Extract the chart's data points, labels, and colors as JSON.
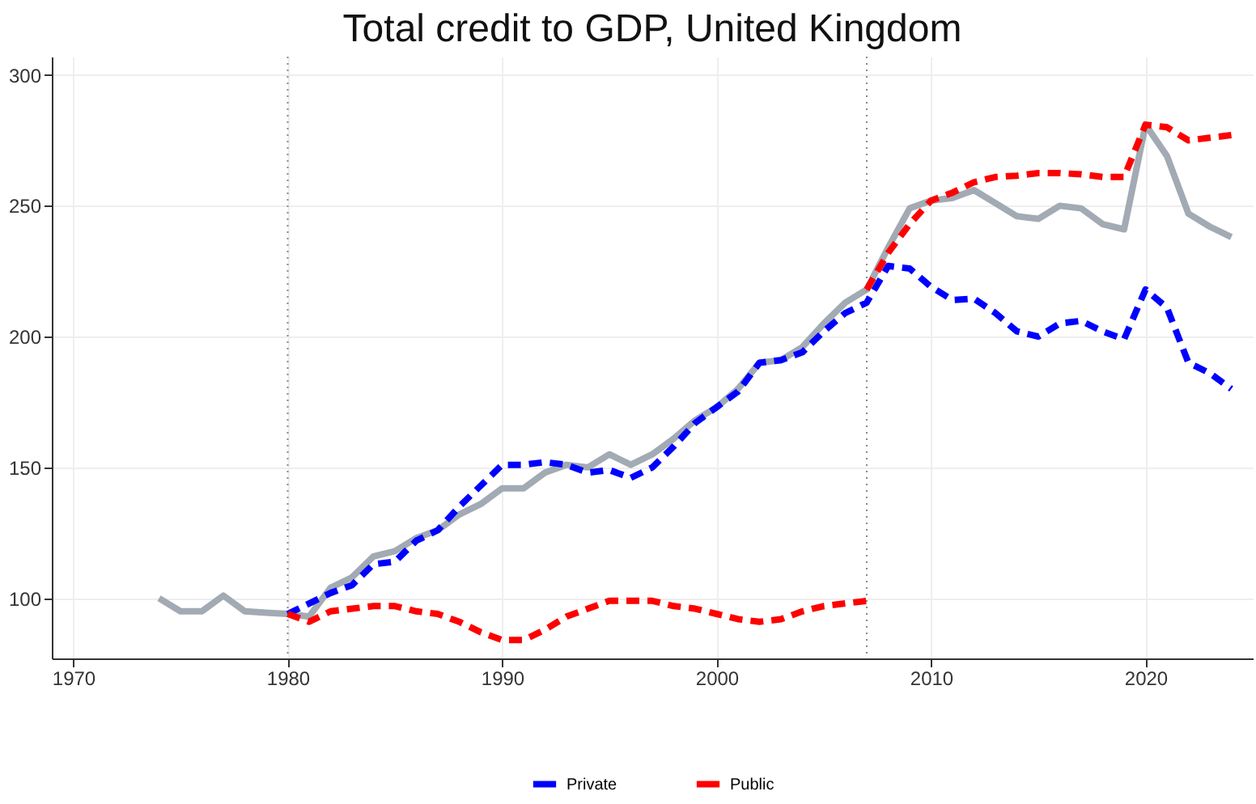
{
  "chart_data": {
    "type": "line",
    "title": "Total credit to GDP, United Kingdom",
    "xlim": [
      1969,
      2025
    ],
    "xticks": [
      1970,
      1980,
      1990,
      2000,
      2010,
      2020
    ],
    "ylim": [
      77,
      307
    ],
    "yticks": [
      100,
      150,
      200,
      250,
      300
    ],
    "grid": true,
    "legend": "bottom",
    "marker": "none",
    "ref_lines": [
      {
        "axis": "x",
        "value": 1980,
        "color": "#888888",
        "line_style": "dotted"
      },
      {
        "axis": "x",
        "value": 2007,
        "color": "#888888",
        "line_style": "dotted"
      }
    ],
    "series": [
      {
        "color": "#a2aab4",
        "line_style": "solid",
        "x": [
          1974,
          1975,
          1976,
          1977,
          1978,
          1979,
          1980,
          1981,
          1982,
          1983,
          1984,
          1985,
          1986,
          1987,
          1988,
          1989,
          1990,
          1991,
          1992,
          1993,
          1994,
          1995,
          1996,
          1997,
          1998,
          1999,
          2000,
          2001,
          2002,
          2003,
          2004,
          2005,
          2006,
          2007,
          2008,
          2009,
          2010,
          2011,
          2012,
          2013,
          2014,
          2015,
          2016,
          2017,
          2018,
          2019,
          2020,
          2021,
          2022,
          2023,
          2024
        ],
        "values": [
          100,
          95,
          95,
          101,
          95,
          94.5,
          94,
          93,
          104,
          108,
          116,
          118,
          123,
          126,
          132,
          136,
          142,
          142,
          148,
          151,
          150,
          155,
          151,
          155,
          161,
          168,
          173,
          180,
          190,
          191,
          196,
          205,
          213,
          218,
          234,
          249,
          252,
          253,
          256,
          251,
          246,
          245,
          250,
          249,
          243,
          241,
          281,
          269,
          247,
          242,
          238
        ]
      },
      {
        "name": "Private",
        "color": "#0000ff",
        "line_style": "dashed",
        "x": [
          1980,
          1981,
          1982,
          1983,
          1984,
          1985,
          1986,
          1987,
          1988,
          1989,
          1990,
          1991,
          1992,
          1993,
          1994,
          1995,
          1996,
          1997,
          1998,
          1999,
          2000,
          2001,
          2002,
          2003,
          2004,
          2005,
          2006,
          2007,
          2008,
          2009,
          2010,
          2011,
          2012,
          2013,
          2014,
          2015,
          2016,
          2017,
          2018,
          2019,
          2020,
          2021,
          2022,
          2023,
          2024
        ],
        "values": [
          94,
          98,
          102,
          105,
          113,
          114,
          122,
          126,
          135,
          143,
          151,
          151,
          152,
          151,
          148,
          149,
          146,
          150,
          158,
          167,
          173,
          179,
          190,
          191,
          194,
          202,
          209,
          213,
          227,
          226,
          219,
          214,
          214.5,
          209,
          202,
          200,
          205,
          206,
          202,
          199,
          218,
          211,
          190,
          186,
          180
        ]
      },
      {
        "name": "Public",
        "color": "#ff0000",
        "line_style": "dashed",
        "x": [
          1980,
          1981,
          1982,
          1983,
          1984,
          1985,
          1986,
          1987,
          1988,
          1989,
          1990,
          1991,
          1992,
          1993,
          1994,
          1995,
          1996,
          1997,
          1998,
          1999,
          2000,
          2001,
          2002,
          2003,
          2004,
          2005,
          2006,
          2007
        ],
        "values": [
          94,
          91,
          95,
          96,
          97,
          97,
          95,
          94,
          91,
          87,
          84,
          84,
          88,
          93,
          96,
          99,
          99,
          99,
          97,
          96,
          94,
          92,
          91,
          92,
          95,
          97,
          98,
          99
        ]
      },
      {
        "color": "#ff0000",
        "line_style": "dashed",
        "x": [
          2007,
          2008,
          2009,
          2010,
          2011,
          2012,
          2013,
          2014,
          2015,
          2016,
          2017,
          2018,
          2019,
          2020,
          2021,
          2022,
          2023,
          2024
        ],
        "values": [
          218,
          232,
          243,
          252,
          255,
          259,
          261,
          261.5,
          262.5,
          262.5,
          262,
          261,
          261,
          281,
          280,
          275,
          276,
          277
        ]
      }
    ]
  }
}
